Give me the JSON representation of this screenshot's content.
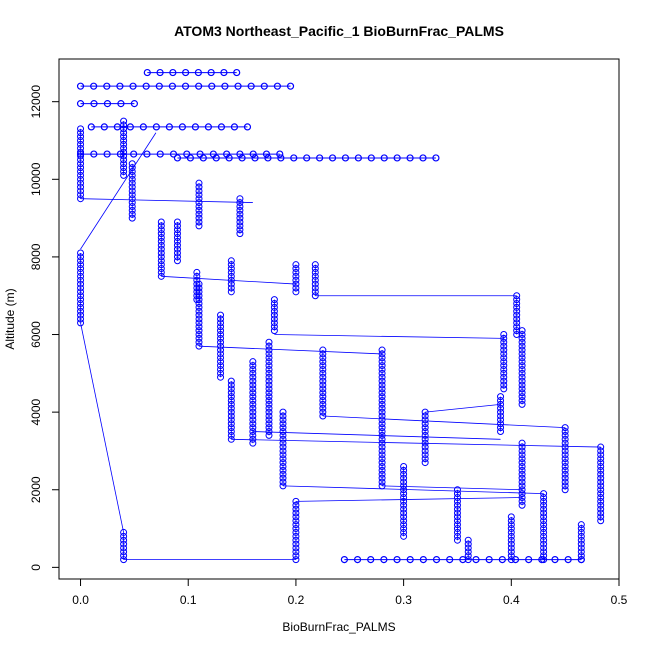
{
  "colors": {
    "series": "#0000ff",
    "axis": "#000000",
    "background": "#ffffff"
  },
  "chart_data": {
    "type": "scatter",
    "title": "ATOM3 Northeast_Pacific_1 BioBurnFrac_PALMS",
    "xlabel": "BioBurnFrac_PALMS",
    "ylabel": "Altitude (m)",
    "xlim": [
      -0.02,
      0.5
    ],
    "ylim": [
      -300,
      13100
    ],
    "xticks": [
      0.0,
      0.1,
      0.2,
      0.3,
      0.4,
      0.5
    ],
    "xtick_labels": [
      "0.0",
      "0.1",
      "0.2",
      "0.3",
      "0.4",
      "0.5"
    ],
    "yticks": [
      0,
      2000,
      4000,
      6000,
      8000,
      10000,
      12000
    ],
    "ytick_labels": [
      "0",
      "2000",
      "4000",
      "6000",
      "8000",
      "10000",
      "12000"
    ],
    "grid": false,
    "legend": "none",
    "marker": "open-circle",
    "connect_points": true,
    "segments": [
      {
        "x": 0.0,
        "y_from": 9500,
        "y_to": 11300
      },
      {
        "x": 0.0,
        "y_from": 6300,
        "y_to": 8100
      },
      {
        "x": 0.04,
        "y_from": 200,
        "y_to": 900
      },
      {
        "x": 0.04,
        "y_from": 10100,
        "y_to": 11500
      },
      {
        "x": 0.048,
        "y_from": 9000,
        "y_to": 10400
      },
      {
        "x": 0.075,
        "y_from": 7500,
        "y_to": 8900
      },
      {
        "x": 0.09,
        "y_from": 7900,
        "y_to": 8900
      },
      {
        "x": 0.11,
        "y_from": 8800,
        "y_to": 9900
      },
      {
        "x": 0.108,
        "y_from": 6900,
        "y_to": 7600
      },
      {
        "x": 0.11,
        "y_from": 5700,
        "y_to": 7300
      },
      {
        "x": 0.13,
        "y_from": 4900,
        "y_to": 6500
      },
      {
        "x": 0.14,
        "y_from": 7100,
        "y_to": 7900
      },
      {
        "x": 0.14,
        "y_from": 3300,
        "y_to": 4800
      },
      {
        "x": 0.148,
        "y_from": 8600,
        "y_to": 9500
      },
      {
        "x": 0.16,
        "y_from": 3200,
        "y_to": 5300
      },
      {
        "x": 0.175,
        "y_from": 3400,
        "y_to": 5800
      },
      {
        "x": 0.18,
        "y_from": 6100,
        "y_to": 6900
      },
      {
        "x": 0.188,
        "y_from": 2100,
        "y_to": 4000
      },
      {
        "x": 0.2,
        "y_from": 200,
        "y_to": 1700
      },
      {
        "x": 0.2,
        "y_from": 7100,
        "y_to": 7800
      },
      {
        "x": 0.218,
        "y_from": 7000,
        "y_to": 7800
      },
      {
        "x": 0.225,
        "y_from": 3900,
        "y_to": 5600
      },
      {
        "x": 0.28,
        "y_from": 2100,
        "y_to": 5600
      },
      {
        "x": 0.3,
        "y_from": 800,
        "y_to": 2600
      },
      {
        "x": 0.32,
        "y_from": 2700,
        "y_to": 4000
      },
      {
        "x": 0.35,
        "y_from": 700,
        "y_to": 2000
      },
      {
        "x": 0.36,
        "y_from": 200,
        "y_to": 700
      },
      {
        "x": 0.39,
        "y_from": 3500,
        "y_to": 4400
      },
      {
        "x": 0.393,
        "y_from": 4600,
        "y_to": 6000
      },
      {
        "x": 0.4,
        "y_from": 200,
        "y_to": 1300
      },
      {
        "x": 0.405,
        "y_from": 6000,
        "y_to": 7000
      },
      {
        "x": 0.41,
        "y_from": 1600,
        "y_to": 3200
      },
      {
        "x": 0.41,
        "y_from": 4200,
        "y_to": 6100
      },
      {
        "x": 0.43,
        "y_from": 200,
        "y_to": 1900
      },
      {
        "x": 0.45,
        "y_from": 2000,
        "y_to": 3600
      },
      {
        "x": 0.465,
        "y_from": 200,
        "y_to": 1100
      },
      {
        "x": 0.483,
        "y_from": 1200,
        "y_to": 3100
      }
    ],
    "horizontal_runs": [
      {
        "y": 12750,
        "x_from": 0.062,
        "x_to": 0.145
      },
      {
        "y": 12400,
        "x_from": 0.0,
        "x_to": 0.195
      },
      {
        "y": 11950,
        "x_from": 0.0,
        "x_to": 0.05
      },
      {
        "y": 11350,
        "x_from": 0.01,
        "x_to": 0.155
      },
      {
        "y": 10650,
        "x_from": 0.0,
        "x_to": 0.185
      },
      {
        "y": 10550,
        "x_from": 0.09,
        "x_to": 0.33
      },
      {
        "y": 200,
        "x_from": 0.245,
        "x_to": 0.465
      }
    ],
    "connectors": [
      {
        "x1": 0.0,
        "y1": 6300,
        "x2": 0.04,
        "y2": 900
      },
      {
        "x1": 0.04,
        "y1": 200,
        "x2": 0.2,
        "y2": 200
      },
      {
        "x1": 0.2,
        "y1": 1700,
        "x2": 0.41,
        "y2": 1800
      },
      {
        "x1": 0.0,
        "y1": 8200,
        "x2": 0.07,
        "y2": 11200
      },
      {
        "x1": 0.0,
        "y1": 9500,
        "x2": 0.16,
        "y2": 9400
      },
      {
        "x1": 0.075,
        "y1": 7500,
        "x2": 0.2,
        "y2": 7300
      },
      {
        "x1": 0.11,
        "y1": 5700,
        "x2": 0.28,
        "y2": 5500
      },
      {
        "x1": 0.14,
        "y1": 3300,
        "x2": 0.483,
        "y2": 3100
      },
      {
        "x1": 0.16,
        "y1": 3500,
        "x2": 0.39,
        "y2": 3300
      },
      {
        "x1": 0.18,
        "y1": 6000,
        "x2": 0.393,
        "y2": 5900
      },
      {
        "x1": 0.218,
        "y1": 7000,
        "x2": 0.405,
        "y2": 7000
      },
      {
        "x1": 0.188,
        "y1": 2100,
        "x2": 0.43,
        "y2": 1900
      },
      {
        "x1": 0.225,
        "y1": 3900,
        "x2": 0.45,
        "y2": 3600
      },
      {
        "x1": 0.28,
        "y1": 2100,
        "x2": 0.41,
        "y2": 2000
      },
      {
        "x1": 0.32,
        "y1": 4000,
        "x2": 0.39,
        "y2": 4200
      }
    ]
  }
}
